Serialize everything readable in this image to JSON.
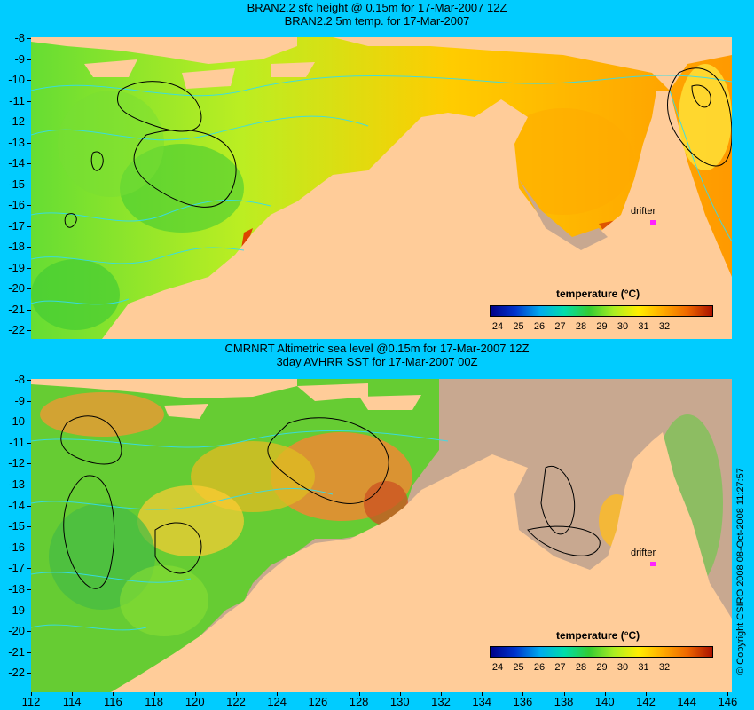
{
  "panels": [
    {
      "title_line1": "BRAN2.2 sfc height @ 0.15m for 17-Mar-2007 12Z",
      "title_line2": "BRAN2.2 5m temp. for 17-Mar-2007",
      "drifter_label": "drifter"
    },
    {
      "title_line1": "CMRNRT Altimetric sea level  @0.15m  for 17-Mar-2007 12Z",
      "title_line2": "3day AVHRR SST for 17-Mar-2007 00Z",
      "drifter_label": "drifter"
    }
  ],
  "legend": {
    "title": "temperature (°C)",
    "labels": [
      "24",
      "25",
      "26",
      "27",
      "28",
      "29",
      "30",
      "31",
      "32"
    ]
  },
  "axes": {
    "y_labels": [
      "-8",
      "-9",
      "-10",
      "-11",
      "-12",
      "-13",
      "-14",
      "-15",
      "-16",
      "-17",
      "-18",
      "-19",
      "-20",
      "-21",
      "-22"
    ],
    "x_labels": [
      "112",
      "114",
      "116",
      "118",
      "120",
      "122",
      "124",
      "126",
      "128",
      "130",
      "132",
      "134",
      "136",
      "138",
      "140",
      "142",
      "144",
      "146"
    ]
  },
  "copyright": "© Copyright CSIRO 2008   08-Oct-2008 11:27:57",
  "colors": {
    "background": "#00ccff",
    "land": "#ffcc99",
    "no_data": "#c8a890",
    "drifter": "#ff22ff",
    "contour_cyan": "#33ddee"
  }
}
